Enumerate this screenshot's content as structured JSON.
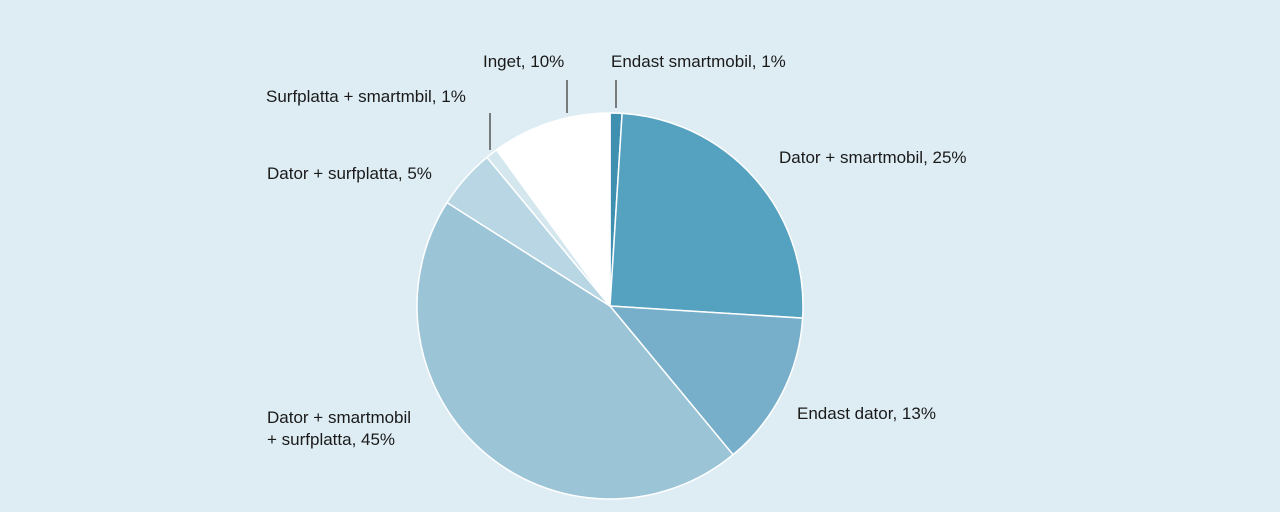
{
  "chart_data": {
    "type": "pie",
    "title": "",
    "start_angle": "top, clockwise",
    "slices": [
      {
        "label": "Endast smartmobil, 1%",
        "category": "Endast smartmobil",
        "value": 1,
        "color": "#3f8fb1"
      },
      {
        "label": "Dator + smartmobil, 25%",
        "category": "Dator + smartmobil",
        "value": 25,
        "color": "#55a1c0"
      },
      {
        "label": "Endast dator, 13%",
        "category": "Endast dator",
        "value": 13,
        "color": "#77afca"
      },
      {
        "label_lines": [
          "Dator + smartmobil",
          "+ surfplatta, 45%"
        ],
        "category": "Dator + smartmobil + surfplatta",
        "value": 45,
        "color": "#9bc4d7"
      },
      {
        "label": "Dator + surfplatta, 5%",
        "category": "Dator + surfplatta",
        "value": 5,
        "color": "#b8d6e3"
      },
      {
        "label": "Surfplatta + smartmbil, 1%",
        "category": "Surfplatta + smartmbil",
        "value": 1,
        "color": "#d4e7ef"
      },
      {
        "label": "Inget, 10%",
        "category": "Inget",
        "value": 10,
        "color": "#ffffff"
      }
    ],
    "background": "#deedf4",
    "legend": "none (direct labels)"
  }
}
